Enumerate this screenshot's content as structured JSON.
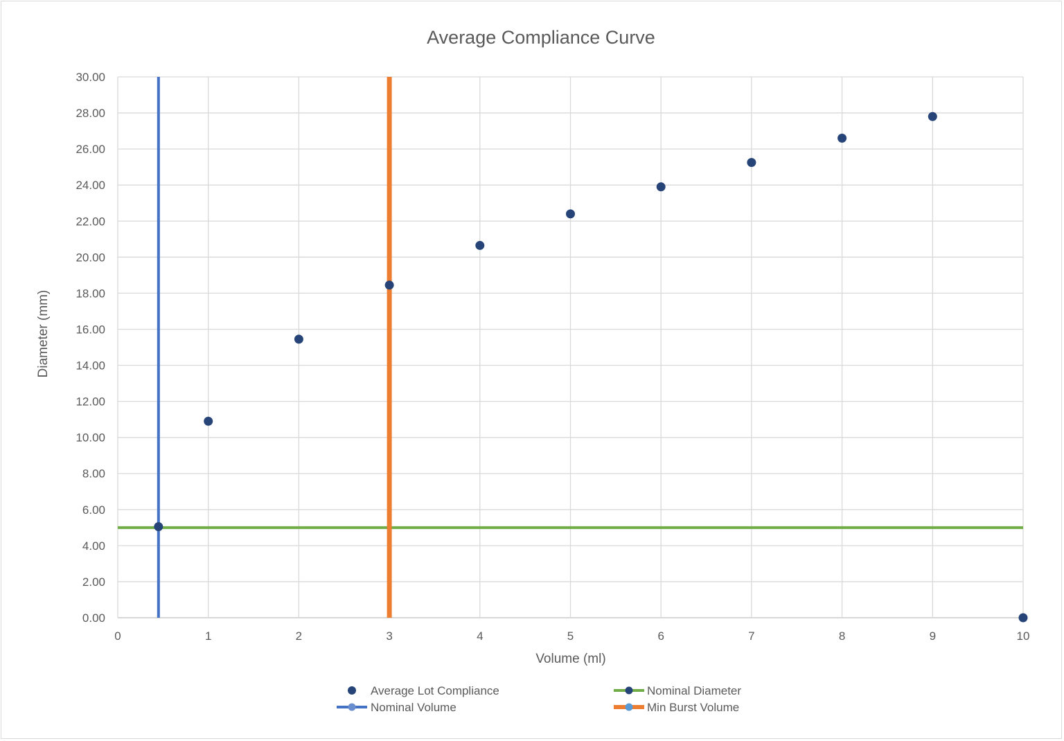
{
  "chart_data": {
    "type": "scatter",
    "title": "Average Compliance Curve",
    "xlabel": "Volume (ml)",
    "ylabel": "Diameter (mm)",
    "xlim": [
      0,
      10
    ],
    "ylim": [
      0,
      30
    ],
    "x_ticks": [
      0,
      1,
      2,
      3,
      4,
      5,
      6,
      7,
      8,
      9,
      10
    ],
    "x_tick_labels": [
      "0",
      "1",
      "2",
      "3",
      "4",
      "5",
      "6",
      "7",
      "8",
      "9",
      "10"
    ],
    "y_ticks": [
      0,
      2,
      4,
      6,
      8,
      10,
      12,
      14,
      16,
      18,
      20,
      22,
      24,
      26,
      28,
      30
    ],
    "y_tick_labels": [
      "0.00",
      "2.00",
      "4.00",
      "6.00",
      "8.00",
      "10.00",
      "12.00",
      "14.00",
      "16.00",
      "18.00",
      "20.00",
      "22.00",
      "24.00",
      "26.00",
      "28.00",
      "30.00"
    ],
    "grid": true,
    "legend_position": "bottom",
    "series": [
      {
        "name": "Average Lot Compliance",
        "kind": "markers",
        "color": "#264478",
        "x": [
          0.45,
          1,
          2,
          3,
          4,
          5,
          6,
          7,
          8,
          9,
          10
        ],
        "y": [
          5.05,
          10.9,
          15.45,
          18.45,
          20.65,
          22.4,
          23.9,
          25.25,
          26.6,
          27.8,
          0.0
        ]
      },
      {
        "name": "Nominal Diameter",
        "kind": "line",
        "color": "#70ad47",
        "x": [
          0,
          10
        ],
        "y": [
          5.0,
          5.0
        ]
      },
      {
        "name": "Nominal Volume",
        "kind": "line",
        "color": "#4472c4",
        "x": [
          0.45,
          0.45
        ],
        "y": [
          0,
          30
        ]
      },
      {
        "name": "Min Burst Volume",
        "kind": "line",
        "color": "#ed7d31",
        "x": [
          3,
          3
        ],
        "y": [
          0,
          30
        ]
      }
    ]
  },
  "legend": {
    "items": [
      {
        "label": "Average Lot Compliance",
        "marker": "dot",
        "color": "#264478"
      },
      {
        "label": "Nominal Diameter",
        "marker": "line-dot",
        "color": "#70ad47",
        "dot_color": "#264478"
      },
      {
        "label": "Nominal Volume",
        "marker": "line-dot",
        "color": "#4472c4",
        "dot_color": "#6a8fd0"
      },
      {
        "label": "Min Burst Volume",
        "marker": "line-dot",
        "color": "#ed7d31",
        "dot_color": "#5b9bd5"
      }
    ]
  },
  "colors": {
    "grid": "#d9d9d9",
    "text": "#595959",
    "axis": "#bfbfbf"
  }
}
